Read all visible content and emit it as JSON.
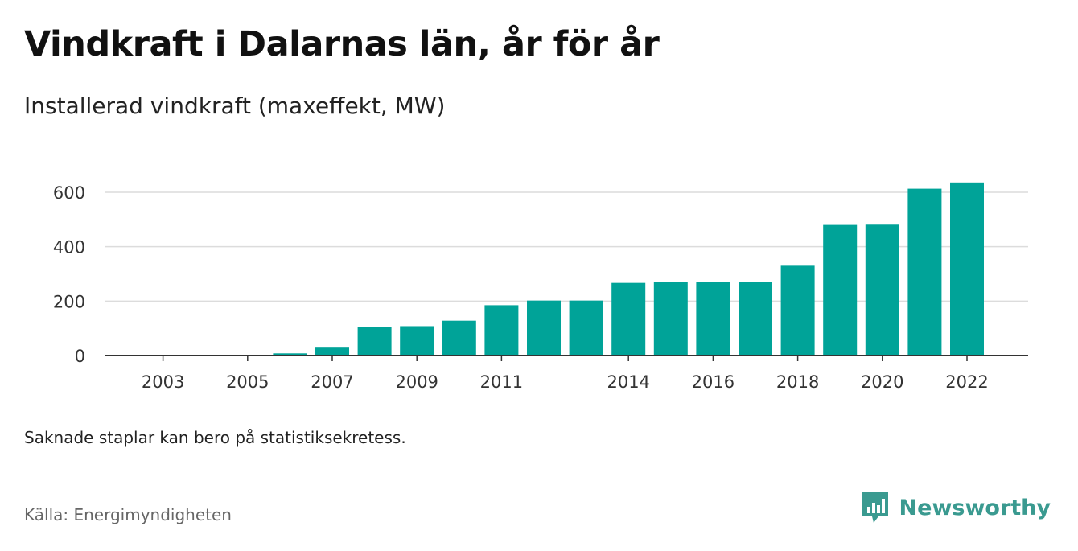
{
  "header": {
    "title": "Vindkraft i Dalarnas län, år för år",
    "subtitle": "Installerad vindkraft (maxeffekt, MW)"
  },
  "footer": {
    "note": "Saknade staplar kan bero på statistiksekretess.",
    "source": "Källa: Energimyndigheten",
    "brand": "Newsworthy"
  },
  "colors": {
    "bar": "#00a398",
    "brand": "#3a9a90",
    "grid": "#dcdcdc",
    "axis": "#333333"
  },
  "brand_icon": "newsworthy-logo-icon",
  "chart_data": {
    "type": "bar",
    "title": "Vindkraft i Dalarnas län, år för år",
    "subtitle": "Installerad vindkraft (maxeffekt, MW)",
    "xlabel": "",
    "ylabel": "",
    "categories": [
      "2002",
      "2003",
      "2004",
      "2005",
      "2006",
      "2007",
      "2008",
      "2009",
      "2010",
      "2011",
      "2012",
      "2013",
      "2014",
      "2015",
      "2016",
      "2017",
      "2018",
      "2019",
      "2020",
      "2021",
      "2022"
    ],
    "values": [
      0,
      0,
      0,
      0,
      8,
      29,
      105,
      108,
      128,
      185,
      202,
      202,
      267,
      269,
      270,
      271,
      330,
      480,
      481,
      613,
      636
    ],
    "x_tick_labels": [
      "2003",
      "2005",
      "2007",
      "2009",
      "2011",
      "2014",
      "2016",
      "2018",
      "2020",
      "2022"
    ],
    "y_ticks": [
      0,
      200,
      400,
      600
    ],
    "ylim": [
      0,
      650
    ],
    "grid": true,
    "legend": "none"
  }
}
